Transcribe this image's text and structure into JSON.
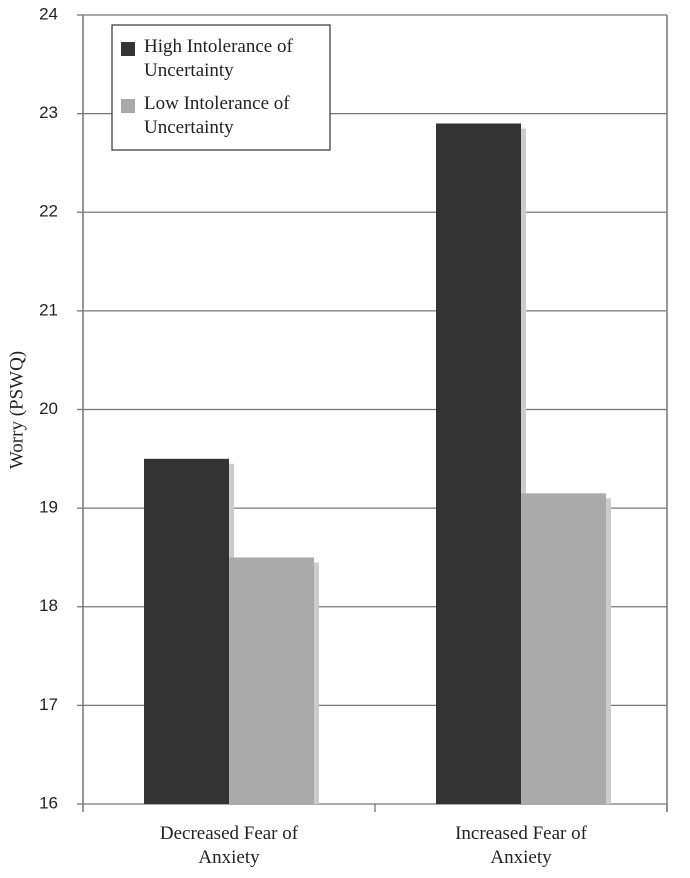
{
  "chart_data": {
    "type": "bar",
    "y_label": "Worry (PSWQ)",
    "categories": [
      "Decreased Fear of Anxiety",
      "Increased Fear of Anxiety"
    ],
    "series": [
      {
        "name": "High Intolerance of Uncertainty",
        "color": "#333333",
        "values": [
          19.5,
          22.9
        ]
      },
      {
        "name": "Low Intolerance of Uncertainty",
        "color": "#aaaaaa",
        "values": [
          18.5,
          19.15
        ]
      }
    ],
    "ylim": [
      16,
      24
    ],
    "yticks": [
      16,
      17,
      18,
      19,
      20,
      21,
      22,
      23,
      24
    ],
    "grid": true,
    "legend": "upper-left"
  }
}
